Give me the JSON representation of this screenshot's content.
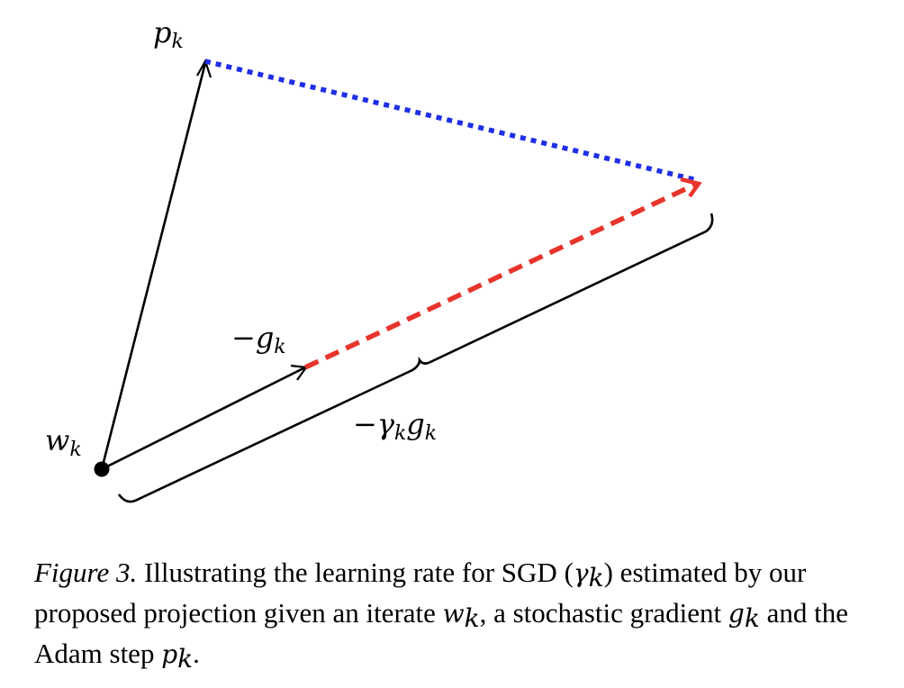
{
  "labels": {
    "p_main": "p",
    "p_sub": "k",
    "g_main": "−g",
    "g_sub": "k",
    "w_main": "w",
    "w_sub": "k",
    "gamma_main": "−γ",
    "gamma_sub": "k",
    "gamma_g": "g",
    "gamma_g_sub": "k"
  },
  "colors": {
    "adam_to_sgd_dotted": "#1f2ee8",
    "sgd_step_dashed": "#e8352c",
    "vectors": "#000000"
  },
  "caption": {
    "figure_label": "Figure 3.",
    "text_1": " Illustrating the learning rate for SGD (",
    "gamma": "γ",
    "gamma_sub": "k",
    "text_2": ") estimated by our proposed projection given an iterate ",
    "w": "w",
    "w_sub": "k",
    "text_3": ", a stochastic gradient ",
    "g": "g",
    "g_sub": "k",
    "text_4": " and the Adam step ",
    "p": "p",
    "p_sub": "k",
    "text_5": "."
  }
}
